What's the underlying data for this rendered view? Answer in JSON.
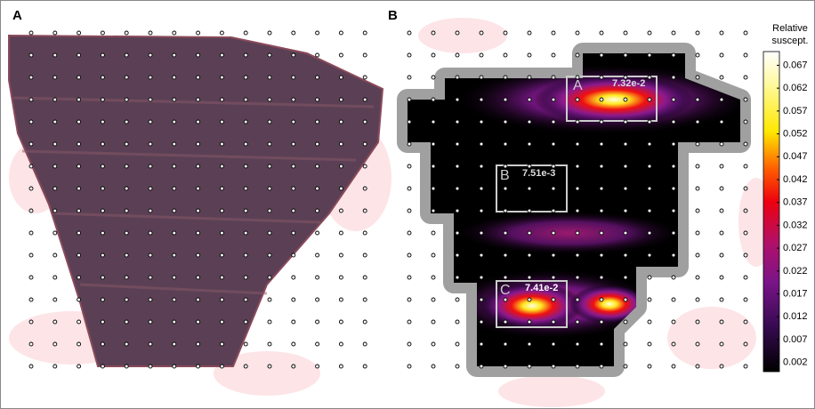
{
  "panels": [
    {
      "label": "A"
    },
    {
      "label": "B"
    }
  ],
  "colorbar": {
    "title": [
      "Relative",
      "suscept."
    ],
    "lim": [
      0,
      0.07
    ],
    "ticks": [
      0.002,
      0.007,
      0.012,
      0.017,
      0.022,
      0.027,
      0.032,
      0.037,
      0.042,
      0.047,
      0.052,
      0.057,
      0.062,
      0.067
    ]
  },
  "regions": [
    {
      "letter": "A",
      "value": "7.32e-2"
    },
    {
      "letter": "B",
      "value": "7.51e-3"
    },
    {
      "letter": "C",
      "value": "7.41e-2"
    }
  ]
}
